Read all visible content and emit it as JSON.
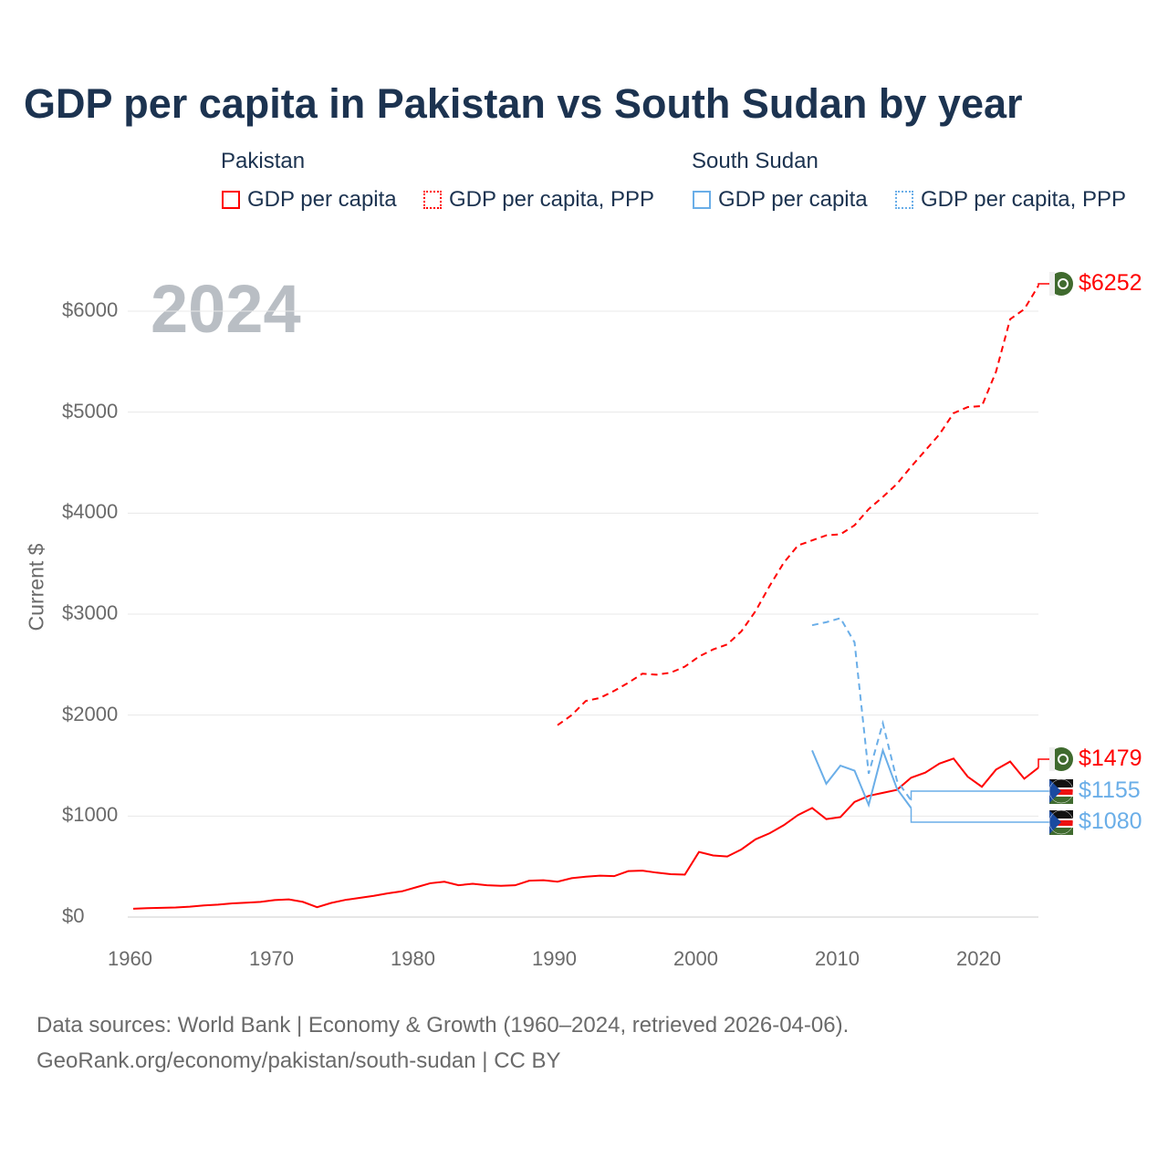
{
  "chart_data": {
    "type": "line",
    "title": "GDP per capita in Pakistan vs South Sudan by year",
    "ylabel": "Current $",
    "xlim": [
      1960,
      2024
    ],
    "ylim": [
      0,
      6000
    ],
    "yticks": [
      0,
      1000,
      2000,
      3000,
      4000,
      5000,
      6000
    ],
    "ytick_labels": [
      "$0",
      "$1000",
      "$2000",
      "$3000",
      "$4000",
      "$5000",
      "$6000"
    ],
    "xticks": [
      1960,
      1970,
      1980,
      1990,
      2000,
      2010,
      2020
    ],
    "xtick_labels": [
      "1960",
      "1970",
      "1980",
      "1990",
      "2000",
      "2010",
      "2020"
    ],
    "year_watermark": "2024",
    "legend": {
      "groups": [
        {
          "name": "Pakistan",
          "items": [
            "GDP per capita",
            "GDP per capita, PPP"
          ]
        },
        {
          "name": "South Sudan",
          "items": [
            "GDP per capita",
            "GDP per capita, PPP"
          ]
        }
      ]
    },
    "series": [
      {
        "name": "Pakistan GDP per capita",
        "color": "#ff0000",
        "dash": false,
        "start": 1960,
        "values": [
          82,
          88,
          92,
          95,
          103,
          115,
          123,
          135,
          142,
          150,
          168,
          175,
          150,
          98,
          140,
          170,
          190,
          210,
          235,
          255,
          295,
          335,
          350,
          315,
          330,
          315,
          310,
          315,
          360,
          365,
          350,
          385,
          400,
          410,
          405,
          455,
          460,
          440,
          425,
          420,
          645,
          610,
          600,
          670,
          770,
          830,
          910,
          1010,
          1080,
          970,
          990,
          1140,
          1200,
          1230,
          1260,
          1380,
          1430,
          1520,
          1570,
          1390,
          1290,
          1460,
          1540,
          1370,
          1479
        ],
        "end_label": "$1479"
      },
      {
        "name": "Pakistan GDP per capita, PPP",
        "color": "#ff0000",
        "dash": true,
        "start": 1990,
        "values": [
          1900,
          2000,
          2140,
          2170,
          2240,
          2320,
          2410,
          2400,
          2420,
          2480,
          2580,
          2650,
          2700,
          2830,
          3030,
          3280,
          3510,
          3680,
          3730,
          3780,
          3790,
          3880,
          4040,
          4160,
          4290,
          4460,
          4620,
          4780,
          4990,
          5050,
          5060,
          5400,
          5920,
          6020,
          6252
        ],
        "end_label": "$6252"
      },
      {
        "name": "South Sudan GDP per capita",
        "color": "#6aaee8",
        "dash": false,
        "start": 2008,
        "values": [
          1650,
          1320,
          1500,
          1450,
          1110,
          1650,
          1270,
          1080
        ],
        "end_label": "$1080"
      },
      {
        "name": "South Sudan GDP per capita, PPP",
        "color": "#6aaee8",
        "dash": true,
        "start": 2008,
        "values": [
          2890,
          2920,
          2960,
          2720,
          1420,
          1920,
          1350,
          1155
        ],
        "end_label": "$1155"
      }
    ]
  },
  "sources": {
    "line1": "Data sources: World Bank | Economy & Growth (1960–2024, retrieved 2026-04-06).",
    "line2": "GeoRank.org/economy/pakistan/south-sudan | CC BY"
  }
}
